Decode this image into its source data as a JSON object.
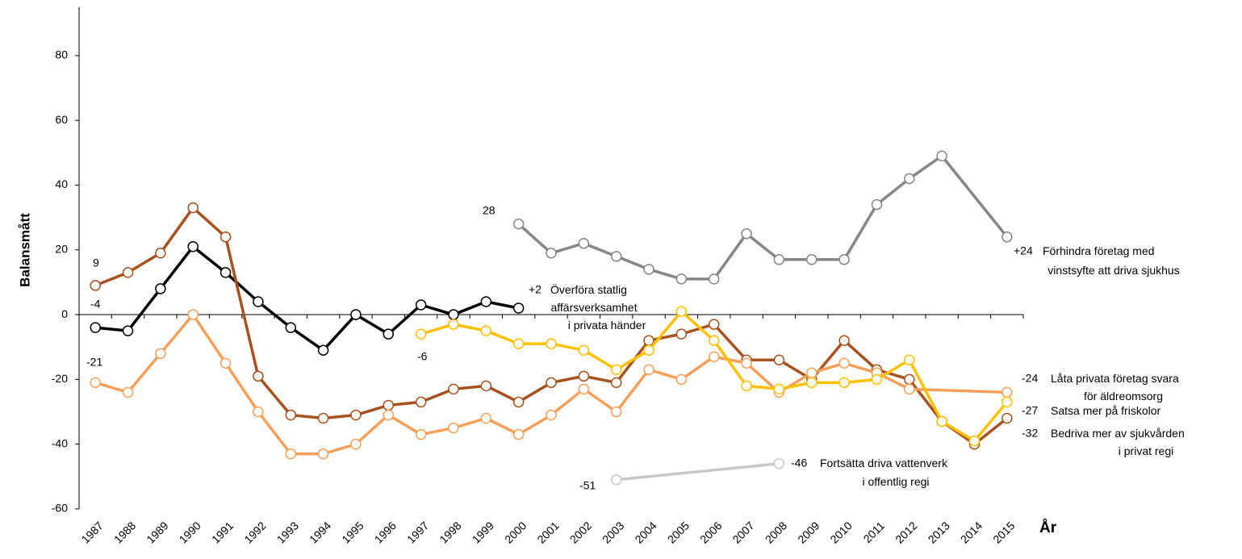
{
  "chart_data": {
    "type": "line",
    "y_label": "Balansmått",
    "x_label": "År",
    "xlim": [
      1986.5,
      2015.5
    ],
    "xticks": [
      1987,
      1988,
      1989,
      1990,
      1991,
      1992,
      1993,
      1994,
      1995,
      1996,
      1997,
      1998,
      1999,
      2000,
      2001,
      2002,
      2003,
      2004,
      2005,
      2006,
      2007,
      2008,
      2009,
      2010,
      2011,
      2012,
      2013,
      2014,
      2015
    ],
    "ylim": [
      -60,
      95
    ],
    "yticks": [
      -60,
      -40,
      -20,
      0,
      20,
      40,
      60,
      80
    ],
    "grid": false,
    "series": [
      {
        "name": "Överföra statlig affärsverksamhet i privata händer",
        "color": "#000000",
        "x": [
          1987,
          1988,
          1989,
          1990,
          1991,
          1992,
          1993,
          1994,
          1995,
          1996,
          1997,
          1998,
          1999,
          2000
        ],
        "values": [
          -4,
          -5,
          8,
          21,
          13,
          4,
          -4,
          -11,
          0,
          -6,
          3,
          0,
          4,
          2
        ],
        "value_labels": [
          "-4",
          null,
          null,
          null,
          null,
          null,
          null,
          null,
          null,
          null,
          null,
          null,
          null,
          "+2"
        ]
      },
      {
        "name": "Bedriva mer av sjukvården i privat regi",
        "color": "#a5521f",
        "x": [
          1987,
          1988,
          1989,
          1990,
          1991,
          1992,
          1993,
          1994,
          1995,
          1996,
          1997,
          1998,
          1999,
          2000,
          2001,
          2002,
          2003,
          2004,
          2005,
          2006,
          2007,
          2008,
          2009,
          2010,
          2011,
          2012,
          2013,
          2014,
          2015
        ],
        "values": [
          9,
          13,
          19,
          33,
          24,
          -19,
          -31,
          -32,
          -31,
          -28,
          -27,
          -23,
          -22,
          -27,
          -21,
          -19,
          -21,
          -8,
          -6,
          -3,
          -14,
          -14,
          -20,
          -8,
          -17,
          -20,
          -33,
          -40,
          -32
        ],
        "value_labels": [
          "9",
          null,
          null,
          null,
          null,
          null,
          null,
          null,
          null,
          null,
          null,
          null,
          null,
          null,
          null,
          null,
          null,
          null,
          null,
          null,
          null,
          null,
          null,
          null,
          null,
          null,
          null,
          null,
          "-32"
        ]
      },
      {
        "name": "Låta privata företag svara för äldreomsorg",
        "color": "#f5a05a",
        "x": [
          1987,
          1988,
          1989,
          1990,
          1991,
          1992,
          1993,
          1994,
          1995,
          1996,
          1997,
          1998,
          1999,
          2000,
          2001,
          2002,
          2003,
          2004,
          2005,
          2006,
          2007,
          2008,
          2009,
          2010,
          2011,
          2012,
          2015
        ],
        "values": [
          -21,
          -24,
          -12,
          0,
          -15,
          -30,
          -43,
          -43,
          -40,
          -31,
          -37,
          -35,
          -32,
          -37,
          -31,
          -23,
          -30,
          -17,
          -20,
          -13,
          -15,
          -24,
          -18,
          -15,
          -18,
          -23,
          -24
        ],
        "value_labels": [
          "-21",
          null,
          null,
          null,
          null,
          null,
          null,
          null,
          null,
          null,
          null,
          null,
          null,
          null,
          null,
          null,
          null,
          null,
          null,
          null,
          null,
          null,
          null,
          null,
          null,
          null,
          "-24"
        ]
      },
      {
        "name": "Satsa mer på friskolor",
        "color": "#ffc000",
        "x": [
          1997,
          1998,
          1999,
          2000,
          2001,
          2002,
          2003,
          2004,
          2005,
          2006,
          2007,
          2008,
          2009,
          2010,
          2011,
          2012,
          2013,
          2014,
          2015
        ],
        "values": [
          -6,
          -3,
          -5,
          -9,
          -9,
          -11,
          -17,
          -11,
          1,
          -8,
          -22,
          -23,
          -21,
          -21,
          -20,
          -14,
          -33,
          -39,
          -27
        ],
        "value_labels": [
          "-6",
          null,
          null,
          null,
          null,
          null,
          null,
          null,
          null,
          null,
          null,
          null,
          null,
          null,
          null,
          null,
          null,
          null,
          "-27"
        ]
      },
      {
        "name": "Förhindra företag med vinstsyfte att driva sjukhus",
        "color": "#868686",
        "x": [
          2000,
          2001,
          2002,
          2003,
          2004,
          2005,
          2006,
          2007,
          2008,
          2009,
          2010,
          2011,
          2012,
          2013,
          2015
        ],
        "values": [
          28,
          19,
          22,
          18,
          14,
          11,
          11,
          25,
          17,
          17,
          17,
          34,
          42,
          49,
          24
        ],
        "value_labels": [
          "28",
          null,
          null,
          null,
          null,
          null,
          null,
          null,
          null,
          null,
          null,
          null,
          null,
          null,
          "+24"
        ]
      },
      {
        "name": "Fortsätta driva vattenverk i offentlig regi",
        "color": "#c8c8c8",
        "x": [
          2003,
          2008
        ],
        "values": [
          -51,
          -46
        ],
        "value_labels": [
          "-51",
          "-46"
        ]
      }
    ]
  }
}
